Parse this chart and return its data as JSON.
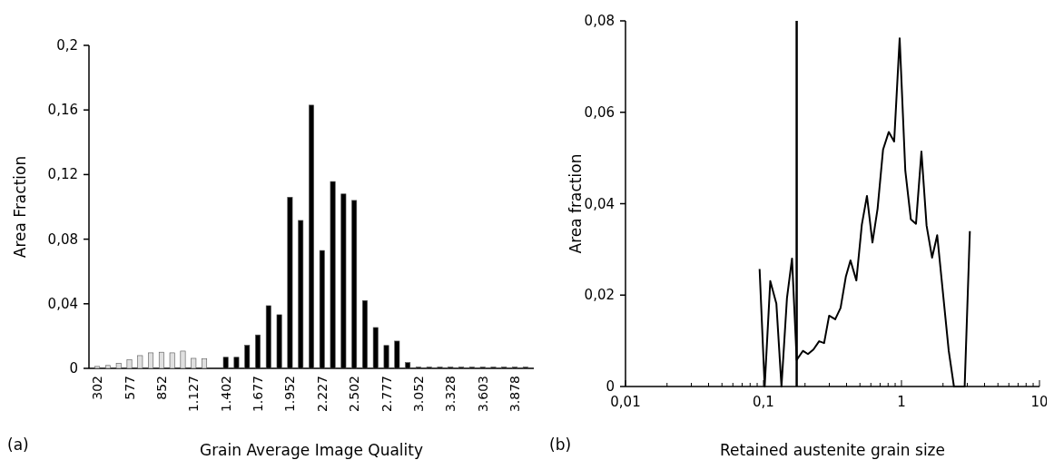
{
  "chart_data": [
    {
      "type": "bar",
      "xlabel": "Grain Average Image Quality",
      "ylabel": "Area Fraction",
      "annotations": [
        "(a)"
      ],
      "categories": [
        "302",
        null,
        null,
        "577",
        null,
        null,
        "852",
        null,
        null,
        "1.127",
        null,
        null,
        "1.402",
        null,
        null,
        "1.677",
        null,
        null,
        "1.952",
        null,
        null,
        "2.227",
        null,
        null,
        "2.502",
        null,
        null,
        "2.777",
        null,
        null,
        "3.052",
        null,
        null,
        "3.328",
        null,
        null,
        "3.603",
        null,
        null,
        "3.878",
        null
      ],
      "values": [
        0.0012,
        0.0018,
        0.0032,
        0.0053,
        0.0079,
        0.0096,
        0.01,
        0.0096,
        0.0107,
        0.0062,
        0.0058,
        0,
        0.0069,
        0.0069,
        0.0143,
        0.0207,
        0.0388,
        0.0332,
        0.106,
        0.0916,
        0.163,
        0.073,
        0.1157,
        0.108,
        0.104,
        0.042,
        0.0253,
        0.0142,
        0.0169,
        0.0036,
        0.0008,
        0.0008,
        0.0008,
        0.0008,
        0.0008,
        0.0008,
        0.0008,
        0.0008,
        0.0008,
        0.0008,
        0.0008
      ],
      "colors": [
        "#e0e0e0",
        "#e0e0e0",
        "#e0e0e0",
        "#e0e0e0",
        "#e0e0e0",
        "#e0e0e0",
        "#e0e0e0",
        "#e0e0e0",
        "#e0e0e0",
        "#e0e0e0",
        "#e0e0e0",
        "#000000",
        "#000000",
        "#000000",
        "#000000",
        "#000000",
        "#000000",
        "#000000",
        "#000000",
        "#000000",
        "#000000",
        "#000000",
        "#000000",
        "#000000",
        "#000000",
        "#000000",
        "#000000",
        "#000000",
        "#000000",
        "#000000",
        "#000000",
        "#000000",
        "#000000",
        "#000000",
        "#000000",
        "#000000",
        "#000000",
        "#000000",
        "#000000",
        "#000000",
        "#000000"
      ],
      "ylim": [
        0,
        0.2
      ],
      "yticks": [
        0,
        {
          "value": 0.04,
          "label": "0,04"
        },
        {
          "value": 0.08,
          "label": "0,08"
        },
        {
          "value": 0.12,
          "label": "0,12"
        },
        {
          "value": 0.16,
          "label": "0,16"
        },
        {
          "value": 0.2,
          "label": "0,2"
        }
      ]
    },
    {
      "type": "line",
      "xlabel": "Retained austenite grain size",
      "ylabel": "Area fraction",
      "annotations": [
        "(b)"
      ],
      "log": "x",
      "x": [
        0.0937,
        0.102,
        0.112,
        0.124,
        0.135,
        0.148,
        0.161,
        0.174,
        0.193,
        0.21,
        0.23,
        0.253,
        0.275,
        0.299,
        0.331,
        0.362,
        0.395,
        0.427,
        0.471,
        0.516,
        0.562,
        0.616,
        0.671,
        0.735,
        0.809,
        0.885,
        0.97,
        1.066,
        1.169,
        1.274,
        1.395,
        1.52,
        1.666,
        1.815,
        2.2,
        2.4,
        2.87,
        3.13
      ],
      "series": [
        {
          "color": "#000000",
          "values": [
            0.0257,
            0,
            0.0231,
            0.0181,
            0,
            0.0194,
            0.028,
            0.0058,
            0.0078,
            0.0071,
            0.0081,
            0.0099,
            0.0095,
            0.0155,
            0.0147,
            0.0172,
            0.024,
            0.0276,
            0.0232,
            0.0354,
            0.0417,
            0.0315,
            0.0389,
            0.0518,
            0.0557,
            0.0536,
            0.0762,
            0.0472,
            0.0366,
            0.0356,
            0.0514,
            0.0352,
            0.0282,
            0.0331,
            0.0078,
            0,
            0,
            0.034
          ]
        }
      ],
      "ref_lines": [
        {
          "axis": "x",
          "value": 0.174,
          "color": "#000000"
        }
      ],
      "xlim": [
        0.01,
        10
      ],
      "xticks": [
        {
          "value": 0.01,
          "label": "0,01"
        },
        {
          "value": 0.02,
          "label": null
        },
        {
          "value": 0.03,
          "label": null
        },
        {
          "value": 0.04,
          "label": null
        },
        {
          "value": 0.05,
          "label": null
        },
        {
          "value": 0.06,
          "label": null
        },
        {
          "value": 0.07,
          "label": null
        },
        {
          "value": 0.08,
          "label": null
        },
        {
          "value": 0.09,
          "label": null
        },
        {
          "value": 0.1,
          "label": "0,1"
        },
        {
          "value": 0.2,
          "label": null
        },
        {
          "value": 0.3,
          "label": null
        },
        {
          "value": 0.4,
          "label": null
        },
        {
          "value": 0.5,
          "label": null
        },
        {
          "value": 0.6,
          "label": null
        },
        {
          "value": 0.7,
          "label": null
        },
        {
          "value": 0.8,
          "label": null
        },
        {
          "value": 0.9,
          "label": null
        },
        1,
        {
          "value": 2,
          "label": null
        },
        {
          "value": 3,
          "label": null
        },
        {
          "value": 4,
          "label": null
        },
        {
          "value": 5,
          "label": null
        },
        {
          "value": 6,
          "label": null
        },
        {
          "value": 7,
          "label": null
        },
        {
          "value": 8,
          "label": null
        },
        {
          "value": 9,
          "label": null
        },
        10
      ],
      "ylim": [
        0,
        0.08
      ],
      "yticks": [
        0,
        {
          "value": 0.02,
          "label": "0,02"
        },
        {
          "value": 0.04,
          "label": "0,04"
        },
        {
          "value": 0.06,
          "label": "0,06"
        },
        {
          "value": 0.08,
          "label": "0,08"
        }
      ]
    }
  ]
}
